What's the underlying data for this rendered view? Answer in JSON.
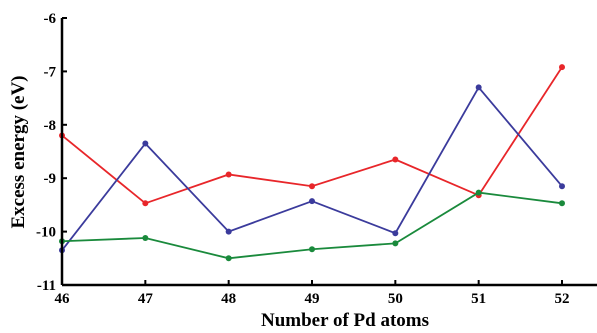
{
  "chart_data": {
    "type": "line",
    "title": "",
    "xlabel": "Number of Pd atoms",
    "ylabel": "Excess energy (eV)",
    "x": [
      46,
      47,
      48,
      49,
      50,
      51,
      52
    ],
    "xlim": [
      46,
      52
    ],
    "ylim": [
      -11,
      -6
    ],
    "xticks": [
      "46",
      "47",
      "48",
      "49",
      "50",
      "51",
      "52"
    ],
    "yticks": [
      "-6",
      "-7",
      "-8",
      "-9",
      "-10",
      "-11"
    ],
    "grid": false,
    "legend": false,
    "series": [
      {
        "color": "#e8262a",
        "values": [
          -8.2,
          -9.47,
          -8.93,
          -9.15,
          -8.65,
          -9.32,
          -6.92
        ]
      },
      {
        "color": "#3b3b9c",
        "values": [
          -10.35,
          -8.35,
          -10.0,
          -9.43,
          -10.03,
          -7.3,
          -9.15
        ]
      },
      {
        "color": "#1a8a3c",
        "values": [
          -10.18,
          -10.12,
          -10.5,
          -10.33,
          -10.22,
          -9.27,
          -9.47
        ]
      }
    ]
  }
}
